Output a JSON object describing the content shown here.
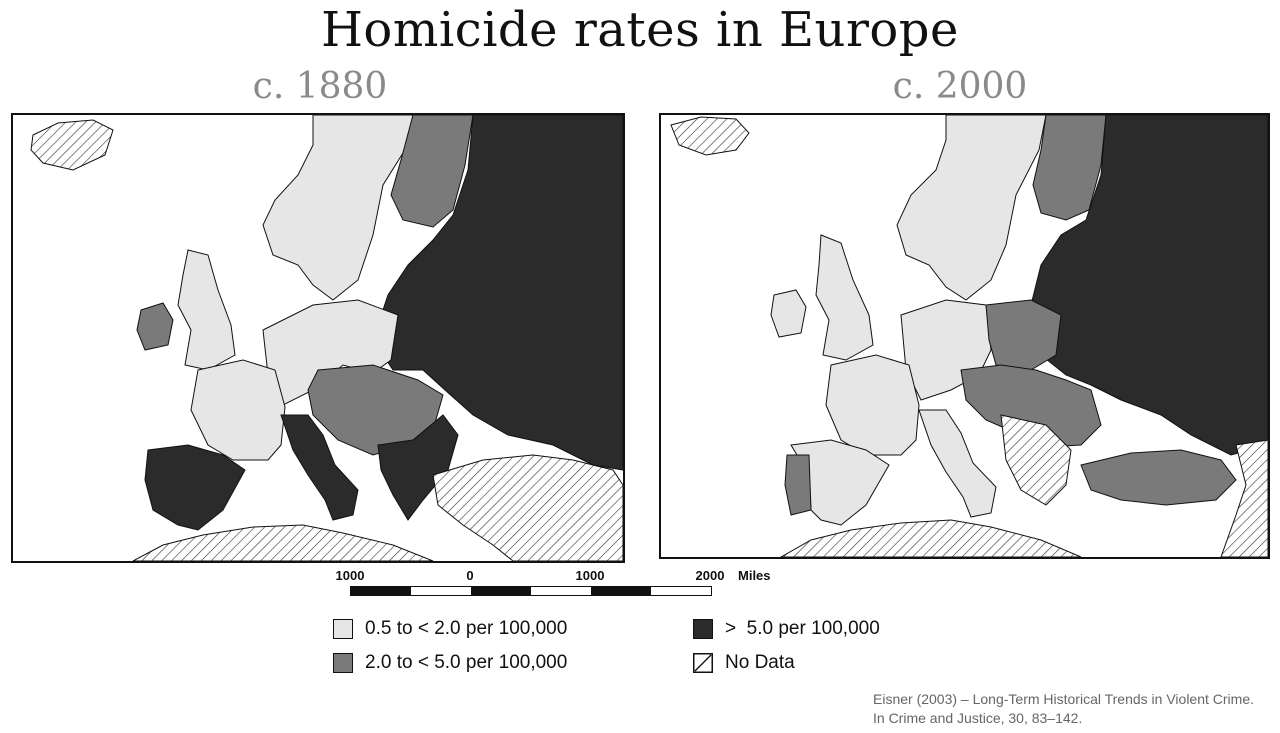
{
  "title": "Homicide rates in Europe",
  "maps": [
    {
      "heading": "c. 1880"
    },
    {
      "heading": "c. 2000"
    }
  ],
  "scale": {
    "labels": [
      "1000",
      "0",
      "1000",
      "2000"
    ],
    "unit": "Miles"
  },
  "legend": {
    "items": [
      {
        "label": "0.5 to < 2.0 per 100,000",
        "color": "#e6e6e6"
      },
      {
        "label": "2.0 to < 5.0 per 100,000",
        "color": "#7a7a7a"
      },
      {
        "label": ">  5.0 per 100,000",
        "color": "#2b2b2b"
      },
      {
        "label": "No Data",
        "pattern": "hatched"
      }
    ]
  },
  "citation": {
    "line1": "Eisner (2003) – Long-Term Historical Trends in Violent Crime.",
    "line2": "In Crime and Justice, 30, 83–142."
  },
  "colors": {
    "low": "#e6e6e6",
    "mid": "#7a7a7a",
    "high": "#2b2b2b",
    "border": "#111111"
  }
}
